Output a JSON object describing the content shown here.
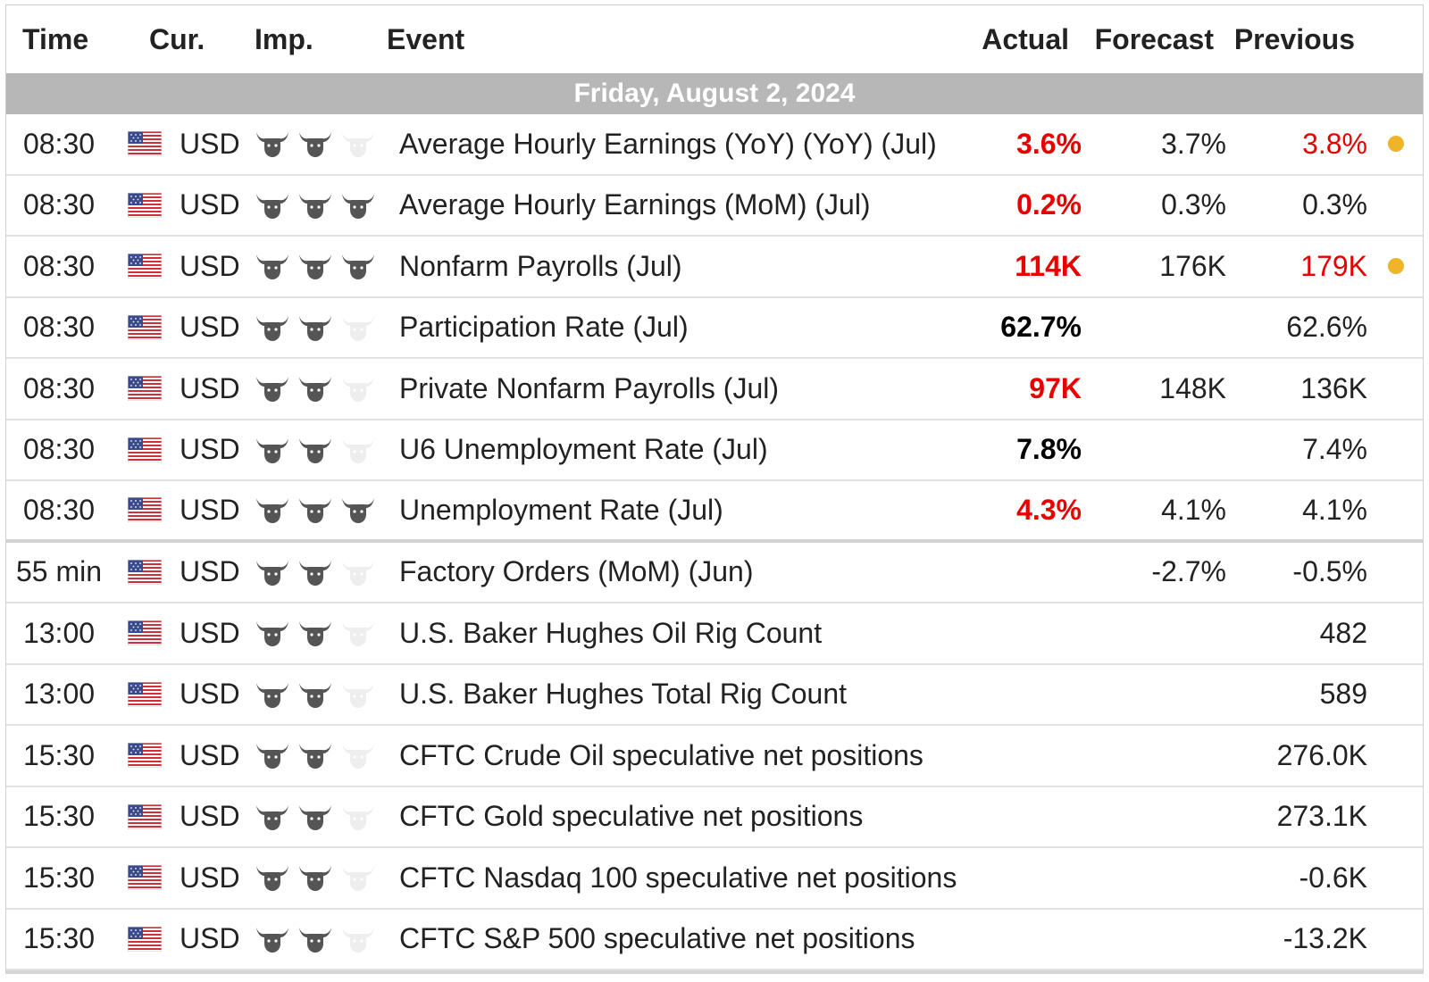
{
  "header": {
    "time": "Time",
    "currency": "Cur.",
    "importance": "Imp.",
    "event": "Event",
    "actual": "Actual",
    "forecast": "Forecast",
    "previous": "Previous"
  },
  "date_label": "Friday, August 2, 2024",
  "colors": {
    "negative": "#e60000",
    "alert_dot": "#f0b429",
    "date_bar": "#b7b7b7",
    "bull_active": "#555555",
    "bull_inactive": "#eeeeee"
  },
  "icons": {
    "flag": "us-flag-icon",
    "importance": "bull-icon",
    "alert": "alert-dot-icon"
  },
  "rows": [
    {
      "time": "08:30",
      "currency": "USD",
      "importance": 2,
      "event": "Average Hourly Earnings (YoY) (YoY) (Jul)",
      "actual": "3.6%",
      "actual_color": "red",
      "forecast": "3.7%",
      "previous": "3.8%",
      "previous_color": "red",
      "alert": true
    },
    {
      "time": "08:30",
      "currency": "USD",
      "importance": 3,
      "event": "Average Hourly Earnings (MoM) (Jul)",
      "actual": "0.2%",
      "actual_color": "red",
      "forecast": "0.3%",
      "previous": "0.3%",
      "previous_color": "",
      "alert": false
    },
    {
      "time": "08:30",
      "currency": "USD",
      "importance": 3,
      "event": "Nonfarm Payrolls (Jul)",
      "actual": "114K",
      "actual_color": "red",
      "forecast": "176K",
      "previous": "179K",
      "previous_color": "red",
      "alert": true
    },
    {
      "time": "08:30",
      "currency": "USD",
      "importance": 2,
      "event": "Participation Rate (Jul)",
      "actual": "62.7%",
      "actual_color": "black",
      "forecast": "",
      "previous": "62.6%",
      "previous_color": "",
      "alert": false
    },
    {
      "time": "08:30",
      "currency": "USD",
      "importance": 2,
      "event": "Private Nonfarm Payrolls (Jul)",
      "actual": "97K",
      "actual_color": "red",
      "forecast": "148K",
      "previous": "136K",
      "previous_color": "",
      "alert": false
    },
    {
      "time": "08:30",
      "currency": "USD",
      "importance": 2,
      "event": "U6 Unemployment Rate (Jul)",
      "actual": "7.8%",
      "actual_color": "black",
      "forecast": "",
      "previous": "7.4%",
      "previous_color": "",
      "alert": false
    },
    {
      "time": "08:30",
      "currency": "USD",
      "importance": 3,
      "event": "Unemployment Rate (Jul)",
      "actual": "4.3%",
      "actual_color": "red",
      "forecast": "4.1%",
      "previous": "4.1%",
      "previous_color": "",
      "alert": false
    },
    {
      "time": "55 min",
      "currency": "USD",
      "importance": 2,
      "event": "Factory Orders (MoM) (Jun)",
      "actual": "",
      "actual_color": "",
      "forecast": "-2.7%",
      "previous": "-0.5%",
      "previous_color": "",
      "alert": false
    },
    {
      "time": "13:00",
      "currency": "USD",
      "importance": 2,
      "event": "U.S. Baker Hughes Oil Rig Count",
      "actual": "",
      "actual_color": "",
      "forecast": "",
      "previous": "482",
      "previous_color": "",
      "alert": false
    },
    {
      "time": "13:00",
      "currency": "USD",
      "importance": 2,
      "event": "U.S. Baker Hughes Total Rig Count",
      "actual": "",
      "actual_color": "",
      "forecast": "",
      "previous": "589",
      "previous_color": "",
      "alert": false
    },
    {
      "time": "15:30",
      "currency": "USD",
      "importance": 2,
      "event": "CFTC Crude Oil speculative net positions",
      "actual": "",
      "actual_color": "",
      "forecast": "",
      "previous": "276.0K",
      "previous_color": "",
      "alert": false
    },
    {
      "time": "15:30",
      "currency": "USD",
      "importance": 2,
      "event": "CFTC Gold speculative net positions",
      "actual": "",
      "actual_color": "",
      "forecast": "",
      "previous": "273.1K",
      "previous_color": "",
      "alert": false
    },
    {
      "time": "15:30",
      "currency": "USD",
      "importance": 2,
      "event": "CFTC Nasdaq 100 speculative net positions",
      "actual": "",
      "actual_color": "",
      "forecast": "",
      "previous": "-0.6K",
      "previous_color": "",
      "alert": false
    },
    {
      "time": "15:30",
      "currency": "USD",
      "importance": 2,
      "event": "CFTC S&P 500 speculative net positions",
      "actual": "",
      "actual_color": "",
      "forecast": "",
      "previous": "-13.2K",
      "previous_color": "",
      "alert": false
    }
  ]
}
